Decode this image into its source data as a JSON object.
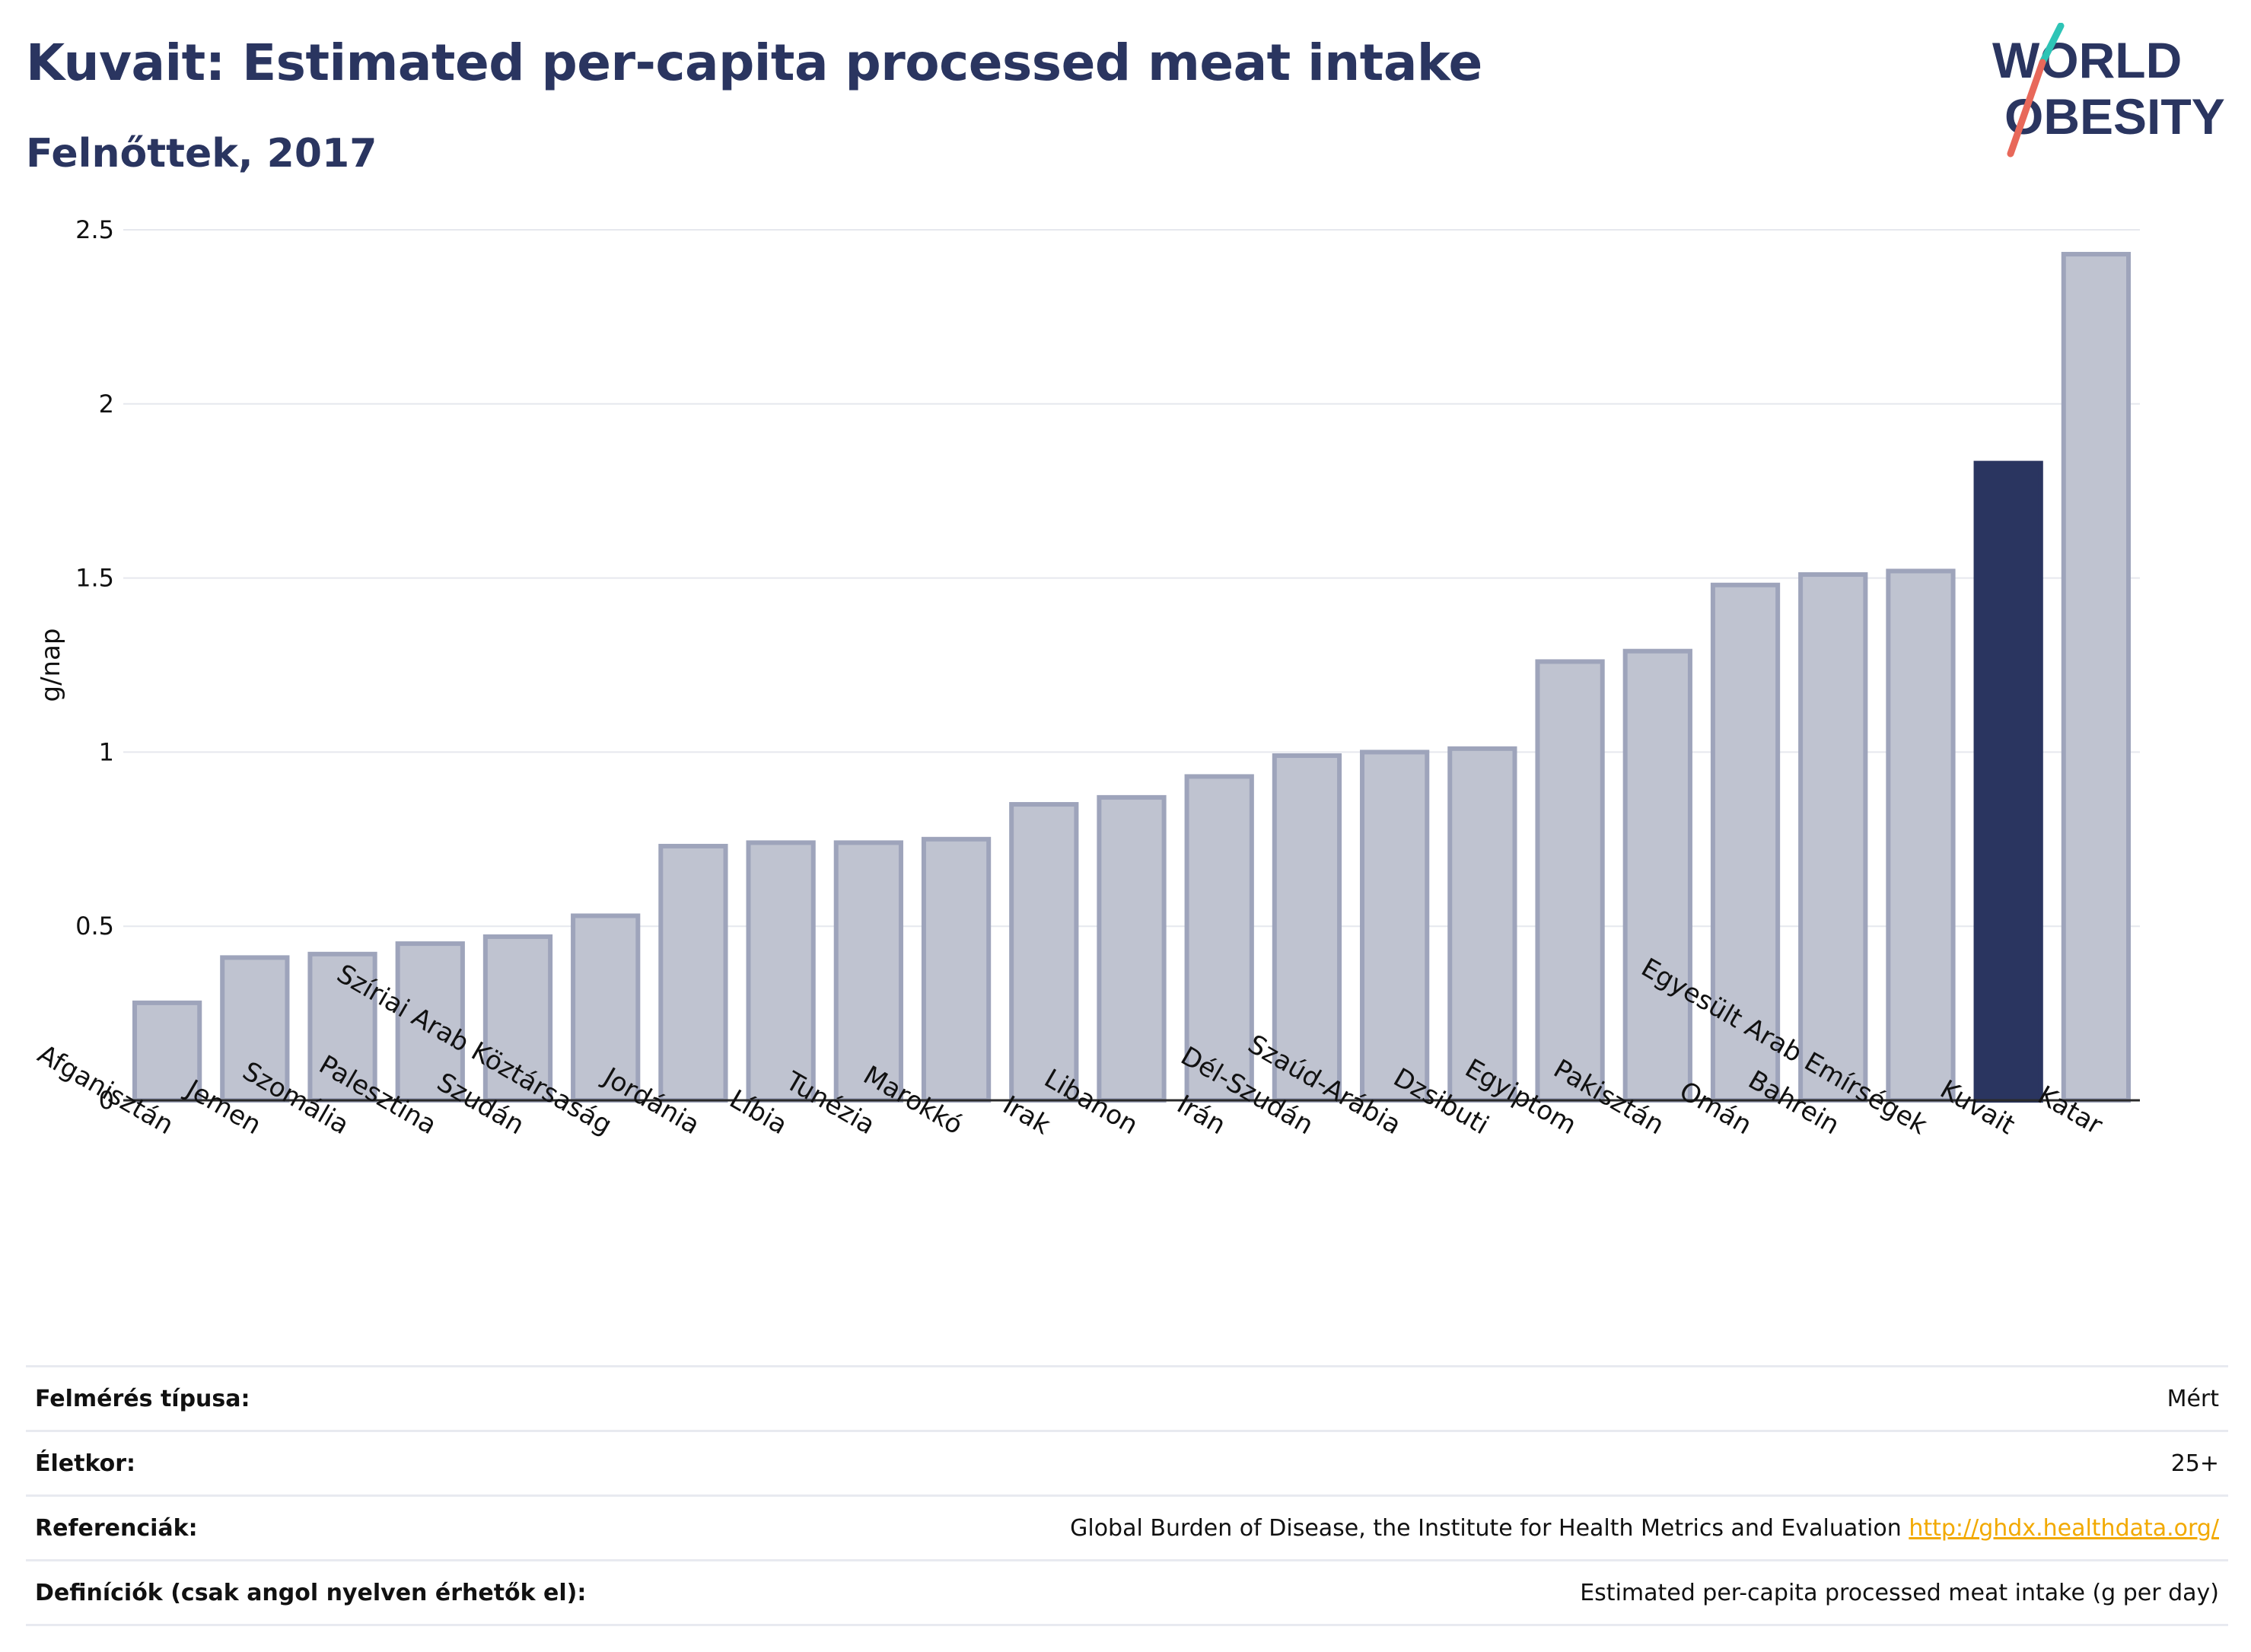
{
  "header": {
    "title": "Kuvait: Estimated per-capita processed meat intake",
    "subtitle": "Felnőttek, 2017"
  },
  "logo": {
    "line1": "WORLD",
    "line2": "OBESITY",
    "slash_colors": [
      "#2ec4b6",
      "#e8685a"
    ]
  },
  "colors": {
    "bar": "#bfc3d0",
    "bar_stroke": "#9ea4bb",
    "highlight": "#2a3560",
    "grid": "#e6e8ee",
    "axis": "#2a2a2a",
    "link": "#f2a900"
  },
  "chart_data": {
    "type": "bar",
    "title": "",
    "xlabel": "",
    "ylabel": "g/nap",
    "ylim": [
      0,
      2.5
    ],
    "yticks": [
      0,
      0.5,
      1,
      1.5,
      2,
      2.5
    ],
    "ytick_labels": [
      "0",
      "0.5",
      "1",
      "1.5",
      "2",
      "2.5"
    ],
    "grid": true,
    "highlight_category": "Kuvait",
    "categories": [
      "Afganisztán",
      "Jemen",
      "Szomália",
      "Palesztina",
      "Szudán",
      "Szíriai Arab Köztársaság",
      "Jordánia",
      "Líbia",
      "Tunézia",
      "Marokkó",
      "Irak",
      "Libanon",
      "Irán",
      "Dél-Szudán",
      "Szaúd-Arábia",
      "Dzsibuti",
      "Egyiptom",
      "Pakisztán",
      "Omán",
      "Bahrein",
      "Egyesült Arab Emírségek",
      "Kuvait",
      "Katar"
    ],
    "values": [
      0.28,
      0.41,
      0.42,
      0.45,
      0.47,
      0.53,
      0.73,
      0.74,
      0.74,
      0.75,
      0.85,
      0.87,
      0.93,
      0.99,
      1.0,
      1.01,
      1.26,
      1.29,
      1.48,
      1.51,
      1.52,
      1.83,
      2.43
    ]
  },
  "info": [
    {
      "label": "Felmérés típusa:",
      "value": "Mért"
    },
    {
      "label": "Életkor:",
      "value": "25+"
    },
    {
      "label": "Referenciák:",
      "value": "Global Burden of Disease, the Institute for Health Metrics and Evaluation",
      "link": "http://ghdx.healthdata.org/"
    },
    {
      "label": "Definíciók (csak angol nyelven érhetők el):",
      "value": "Estimated per-capita processed meat intake (g per day)"
    }
  ]
}
